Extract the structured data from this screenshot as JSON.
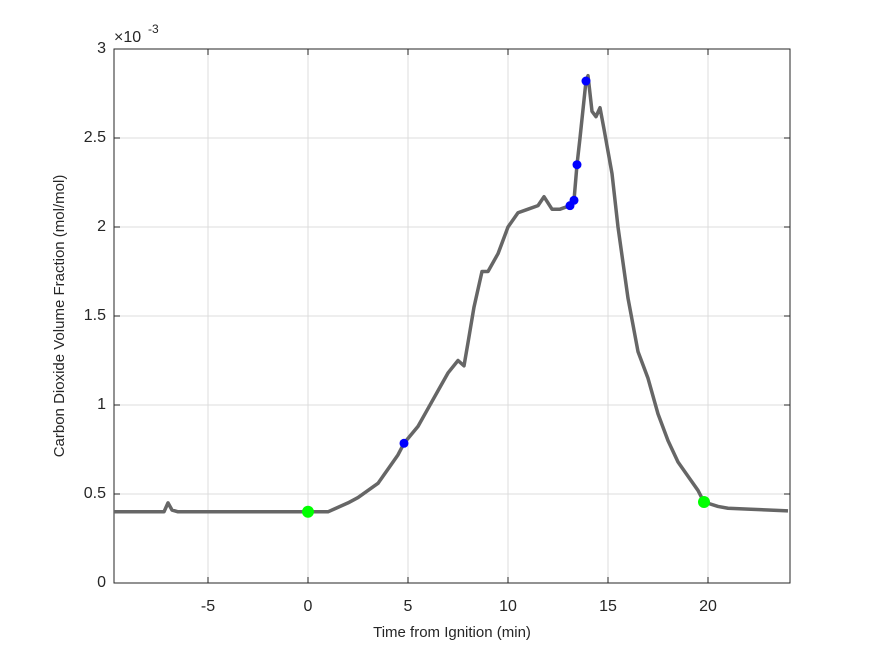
{
  "chart_data": {
    "type": "line",
    "xlabel": "Time from Ignition (min)",
    "ylabel": "Carbon Dioxide Volume Fraction (mol/mol)",
    "y_exponent_base": "×10",
    "y_exponent_power": "-3",
    "xlim": [
      -9.7,
      24.1
    ],
    "ylim": [
      0,
      3
    ],
    "xticks": [
      -5,
      0,
      5,
      10,
      15,
      20
    ],
    "yticks": [
      0,
      0.5,
      1,
      1.5,
      2,
      2.5,
      3
    ],
    "grid": true,
    "series": [
      {
        "color": "#666666",
        "x": [
          -9.7,
          -7.2,
          -7.0,
          -6.8,
          -6.5,
          -3,
          0,
          1,
          1.4,
          2,
          2.5,
          3,
          3.5,
          4,
          4.5,
          4.8,
          5.5,
          6,
          6.5,
          7,
          7.5,
          7.8,
          8,
          8.3,
          8.7,
          9,
          9.5,
          10,
          10.5,
          11,
          11.5,
          11.8,
          12.2,
          12.6,
          13.1,
          13.3,
          13.45,
          13.6,
          13.9,
          14.0,
          14.2,
          14.4,
          14.6,
          14.8,
          15.2,
          15.5,
          16,
          16.5,
          17,
          17.5,
          18,
          18.5,
          19,
          19.5,
          19.8,
          20.5,
          21,
          22,
          23,
          24
        ],
        "values": [
          0.4,
          0.4,
          0.45,
          0.41,
          0.4,
          0.4,
          0.4,
          0.4,
          0.42,
          0.45,
          0.48,
          0.52,
          0.56,
          0.64,
          0.72,
          0.785,
          0.88,
          0.98,
          1.08,
          1.18,
          1.25,
          1.22,
          1.35,
          1.55,
          1.75,
          1.75,
          1.85,
          2.0,
          2.08,
          2.1,
          2.12,
          2.17,
          2.1,
          2.1,
          2.12,
          2.15,
          2.35,
          2.5,
          2.82,
          2.85,
          2.65,
          2.62,
          2.67,
          2.55,
          2.3,
          2.0,
          1.6,
          1.3,
          1.15,
          0.95,
          0.8,
          0.68,
          0.6,
          0.52,
          0.455,
          0.43,
          0.42,
          0.415,
          0.41,
          0.405
        ]
      }
    ],
    "markers": [
      {
        "color": "#00ff00",
        "x": [
          0,
          19.8
        ],
        "values": [
          0.4,
          0.455
        ]
      },
      {
        "color": "#0000ff",
        "x": [
          4.8,
          13.1,
          13.3,
          13.45,
          13.9
        ],
        "values": [
          0.785,
          2.12,
          2.15,
          2.35,
          2.82
        ]
      }
    ]
  }
}
